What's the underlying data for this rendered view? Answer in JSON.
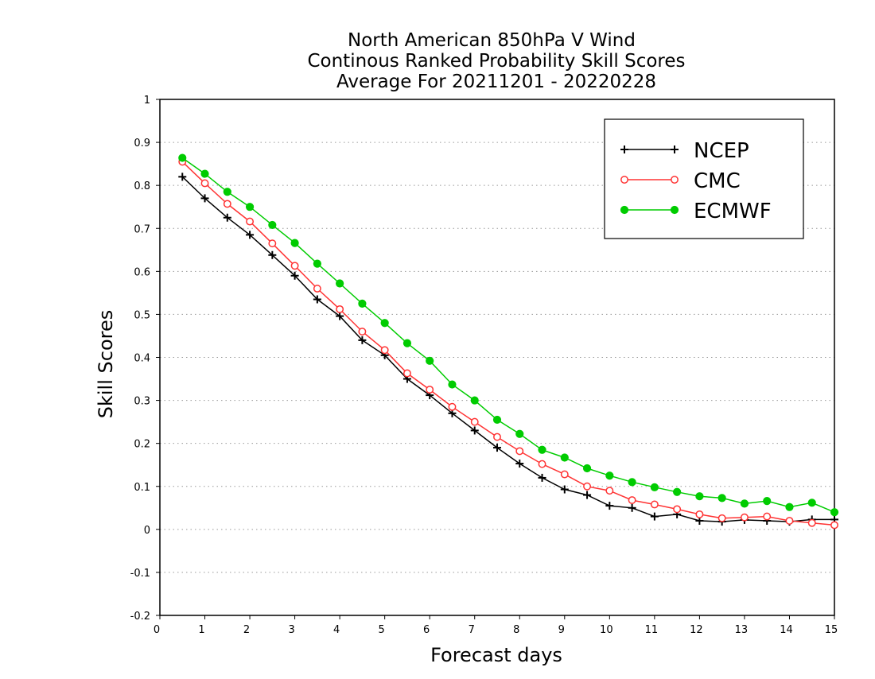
{
  "chart_data": {
    "type": "line",
    "title_lines": [
      "North American 850hPa V Wind",
      "Continous Ranked Probability Skill Scores",
      "Average For 20211201 - 20220228"
    ],
    "xlabel": "Forecast days",
    "ylabel": "Skill Scores",
    "xlim": [
      0,
      15
    ],
    "ylim": [
      -0.2,
      1
    ],
    "xticks": [
      "0",
      "1",
      "2",
      "3",
      "4",
      "5",
      "6",
      "7",
      "8",
      "9",
      "10",
      "11",
      "12",
      "13",
      "14",
      "15"
    ],
    "yticks": [
      "-0.2",
      "-0.1",
      "0",
      "0.1",
      "0.2",
      "0.3",
      "0.4",
      "0.5",
      "0.6",
      "0.7",
      "0.8",
      "0.9",
      "1"
    ],
    "grid": "horizontal-dotted",
    "legend_position": "top-right",
    "x": [
      0.5,
      1,
      1.5,
      2,
      2.5,
      3,
      3.5,
      4,
      4.5,
      5,
      5.5,
      6,
      6.5,
      7,
      7.5,
      8,
      8.5,
      9,
      9.5,
      10,
      10.5,
      11,
      11.5,
      12,
      12.5,
      13,
      13.5,
      14,
      14.5,
      15
    ],
    "series": [
      {
        "name": "NCEP",
        "color": "#000000",
        "marker": "plus",
        "values": [
          0.82,
          0.77,
          0.725,
          0.685,
          0.638,
          0.59,
          0.535,
          0.496,
          0.44,
          0.405,
          0.35,
          0.312,
          0.27,
          0.23,
          0.19,
          0.153,
          0.12,
          0.093,
          0.08,
          0.055,
          0.05,
          0.03,
          0.035,
          0.02,
          0.018,
          0.022,
          0.02,
          0.018,
          0.023,
          0.023
        ]
      },
      {
        "name": "CMC",
        "color": "#ff3333",
        "marker": "open-circle",
        "values": [
          0.855,
          0.805,
          0.757,
          0.716,
          0.665,
          0.613,
          0.56,
          0.512,
          0.46,
          0.417,
          0.363,
          0.325,
          0.285,
          0.25,
          0.215,
          0.182,
          0.152,
          0.128,
          0.1,
          0.09,
          0.068,
          0.058,
          0.047,
          0.035,
          0.026,
          0.028,
          0.03,
          0.02,
          0.015,
          0.01
        ]
      },
      {
        "name": "ECMWF",
        "color": "#00cc00",
        "marker": "filled-circle",
        "values": [
          0.864,
          0.827,
          0.785,
          0.75,
          0.708,
          0.666,
          0.618,
          0.572,
          0.525,
          0.48,
          0.433,
          0.392,
          0.337,
          0.3,
          0.255,
          0.222,
          0.185,
          0.167,
          0.142,
          0.125,
          0.11,
          0.098,
          0.087,
          0.077,
          0.073,
          0.06,
          0.066,
          0.052,
          0.062,
          0.04
        ]
      }
    ]
  }
}
